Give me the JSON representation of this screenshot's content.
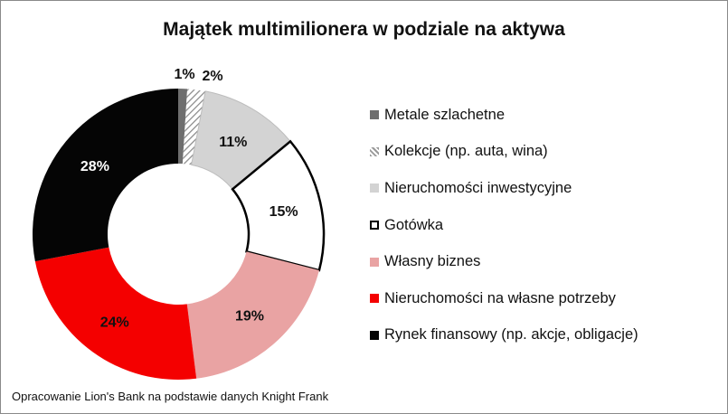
{
  "chart_data": {
    "type": "pie",
    "variant": "donut",
    "title": "Majątek multimilionera w podziale na aktywa",
    "legend_position": "right",
    "slices": [
      {
        "name": "Metale szlachetne",
        "value": 1,
        "label": "1%",
        "color": "#6e6e6e"
      },
      {
        "name": "Kolekcje (np. auta, wina)",
        "value": 2,
        "label": "2%",
        "color": "hatch"
      },
      {
        "name": "Nieruchomości inwestycyjne",
        "value": 11,
        "label": "11%",
        "color": "#d3d3d3"
      },
      {
        "name": "Gotówka",
        "value": 15,
        "label": "15%",
        "color": "#ffffff"
      },
      {
        "name": "Własny biznes",
        "value": 19,
        "label": "19%",
        "color": "#e9a3a3"
      },
      {
        "name": "Nieruchomości na własne potrzeby",
        "value": 24,
        "label": "24%",
        "color": "#f40000"
      },
      {
        "name": "Rynek finansowy (np. akcje, obligacje)",
        "value": 28,
        "label": "28%",
        "color": "#050505"
      }
    ]
  },
  "source": "Opracowanie Lion's Bank na podstawie danych Knight Frank"
}
